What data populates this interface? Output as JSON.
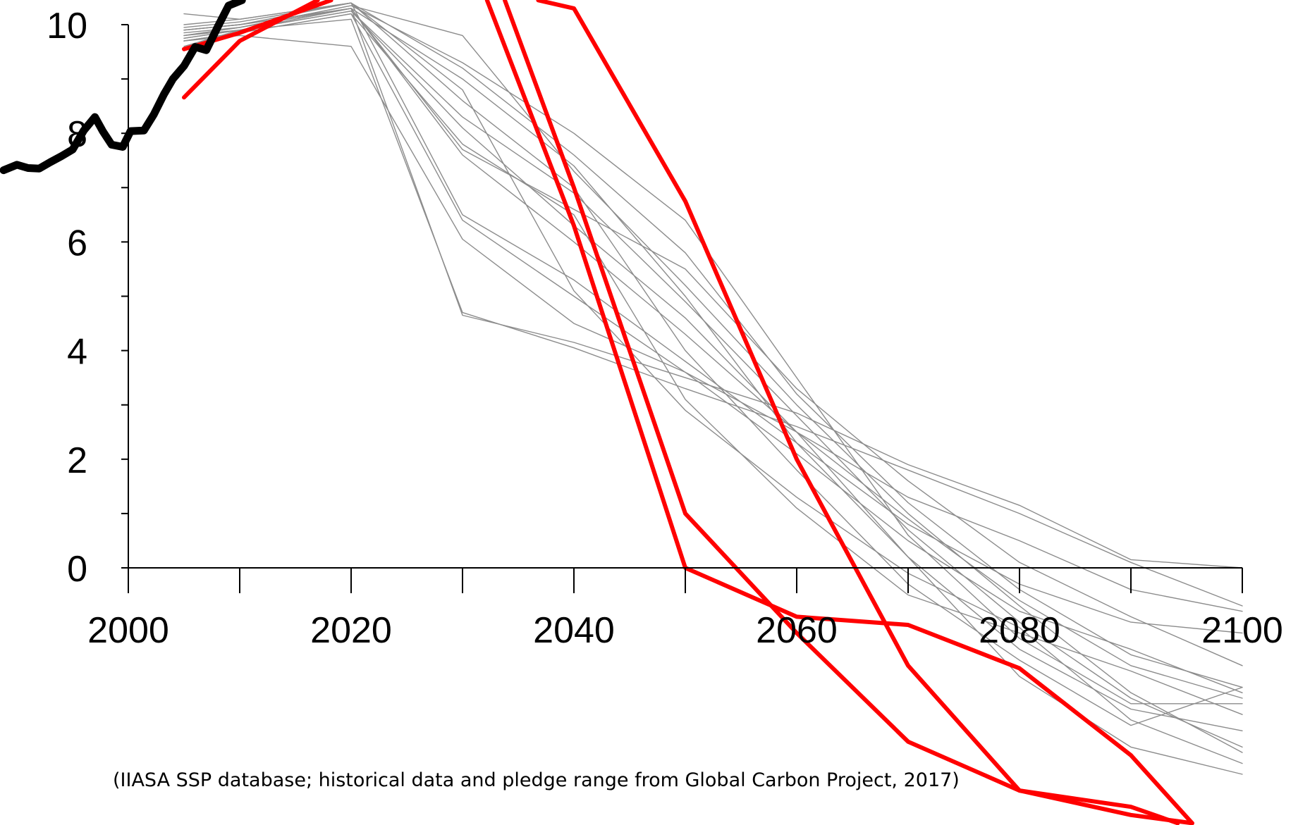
{
  "chart_data": {
    "type": "line",
    "title": "",
    "xlabel": "",
    "ylabel": "",
    "xlim": [
      1988.5,
      2105.8
    ],
    "ylim": [
      -4.7,
      10.45
    ],
    "x_ticks": [
      2000,
      2020,
      2040,
      2060,
      2080,
      2100
    ],
    "x_tick_labels": [
      "2000",
      "2020",
      "2040",
      "2060",
      "2080",
      "2100"
    ],
    "y_ticks": [
      0,
      2,
      4,
      6,
      8,
      10
    ],
    "y_tick_labels": [
      "0",
      "2",
      "4",
      "6",
      "8",
      "10"
    ],
    "grid": false,
    "legend": "none",
    "colors": {
      "historical": "#000000",
      "pathways_red": "#ff0000",
      "scenarios_grey": "#8c8c8c",
      "axis": "#000000"
    },
    "series": [
      {
        "group": "historical",
        "x": [
          1988.8,
          1990,
          1991,
          1992,
          1993,
          1994,
          1995,
          1996,
          1997,
          1997.7,
          1998.5,
          1999.5,
          2000.2,
          2001.4,
          2002.3,
          2003.2,
          2004,
          2005,
          2006,
          2007,
          2008,
          2009,
          2010.2
        ],
        "y": [
          7.32,
          7.42,
          7.36,
          7.35,
          7.47,
          7.58,
          7.7,
          8.05,
          8.3,
          8.04,
          7.79,
          7.75,
          8.04,
          8.05,
          8.35,
          8.72,
          9.0,
          9.24,
          9.59,
          9.53,
          9.95,
          10.35,
          10.45
        ]
      },
      {
        "group": "pathways_red",
        "x": [
          2005,
          2010,
          2018.2
        ],
        "y": [
          9.55,
          9.85,
          10.45
        ]
      },
      {
        "group": "pathways_red",
        "x": [
          2005,
          2010,
          2017
        ],
        "y": [
          8.66,
          9.7,
          10.45
        ]
      },
      {
        "group": "pathways_red",
        "x": [
          2033.8,
          2040,
          2050,
          2060,
          2070,
          2080,
          2090,
          2095.5
        ],
        "y": [
          10.45,
          7.0,
          1.0,
          -1.2,
          -3.2,
          -4.1,
          -4.55,
          -4.7
        ]
      },
      {
        "group": "pathways_red",
        "x": [
          2032.2,
          2040,
          2050,
          2060,
          2070,
          2080,
          2090,
          2095.5
        ],
        "y": [
          10.45,
          6.3,
          0.0,
          -0.9,
          -1.05,
          -1.85,
          -3.45,
          -4.7
        ]
      },
      {
        "group": "pathways_red",
        "x": [
          2036.8,
          2040,
          2050,
          2060,
          2070,
          2080,
          2090,
          2094.2
        ],
        "y": [
          10.45,
          10.3,
          6.75,
          2.0,
          -1.8,
          -4.1,
          -4.4,
          -4.7
        ]
      },
      {
        "group": "scenarios_grey",
        "x": [
          2005,
          2010,
          2020,
          2030,
          2040,
          2050,
          2060,
          2070,
          2080,
          2090,
          2100
        ],
        "y": [
          9.8,
          9.95,
          10.3,
          4.65,
          4.15,
          3.5,
          2.85,
          1.9,
          1.15,
          0.15,
          0.0
        ]
      },
      {
        "group": "scenarios_grey",
        "x": [
          2005,
          2010,
          2020,
          2030,
          2040,
          2050,
          2060,
          2070,
          2080,
          2090,
          2100
        ],
        "y": [
          9.6,
          9.9,
          10.1,
          4.7,
          4.05,
          3.3,
          2.6,
          1.8,
          1.0,
          0.1,
          -0.7
        ]
      },
      {
        "group": "scenarios_grey",
        "x": [
          2005,
          2010,
          2020,
          2030,
          2040,
          2050,
          2060,
          2070,
          2080,
          2090,
          2100
        ],
        "y": [
          9.7,
          9.8,
          9.6,
          6.05,
          4.5,
          3.6,
          2.5,
          1.3,
          0.5,
          -0.4,
          -0.8
        ]
      },
      {
        "group": "scenarios_grey",
        "x": [
          2005,
          2010,
          2020,
          2030,
          2040,
          2050,
          2060,
          2070,
          2080,
          2090,
          2100
        ],
        "y": [
          10.2,
          10.1,
          10.4,
          6.5,
          5.3,
          3.8,
          2.3,
          0.8,
          -0.3,
          -1.0,
          -1.2
        ]
      },
      {
        "group": "scenarios_grey",
        "x": [
          2005,
          2010,
          2020,
          2030,
          2040,
          2050,
          2060,
          2070,
          2080,
          2090,
          2100
        ],
        "y": [
          9.9,
          10.0,
          10.3,
          7.6,
          6.0,
          4.3,
          2.5,
          0.9,
          -0.6,
          -1.8,
          -2.4
        ]
      },
      {
        "group": "scenarios_grey",
        "x": [
          2005,
          2010,
          2020,
          2030,
          2040,
          2050,
          2060,
          2070,
          2080,
          2090,
          2100
        ],
        "y": [
          9.75,
          9.9,
          10.25,
          8.3,
          6.9,
          4.9,
          2.8,
          0.7,
          -1.0,
          -2.4,
          -3.3
        ]
      },
      {
        "group": "scenarios_grey",
        "x": [
          2005,
          2010,
          2020,
          2030,
          2040,
          2050,
          2060,
          2070,
          2080,
          2090,
          2100
        ],
        "y": [
          10.0,
          10.1,
          10.4,
          9.2,
          7.6,
          5.8,
          3.2,
          1.2,
          -0.4,
          -1.6,
          -2.2
        ]
      },
      {
        "group": "scenarios_grey",
        "x": [
          2005,
          2010,
          2020,
          2030,
          2040,
          2050,
          2060,
          2070,
          2080,
          2090,
          2100
        ],
        "y": [
          9.8,
          9.95,
          10.35,
          9.8,
          7.3,
          5.2,
          3.0,
          1.0,
          -0.7,
          -2.3,
          -3.4
        ]
      },
      {
        "group": "scenarios_grey",
        "x": [
          2005,
          2010,
          2020,
          2030,
          2040,
          2050,
          2060,
          2070,
          2080,
          2090,
          2100
        ],
        "y": [
          9.7,
          9.85,
          10.2,
          7.8,
          6.5,
          3.1,
          1.1,
          -0.5,
          -1.2,
          -1.9,
          -2.7
        ]
      },
      {
        "group": "scenarios_grey",
        "x": [
          2005,
          2010,
          2020,
          2030,
          2040,
          2050,
          2060,
          2070,
          2080,
          2090,
          2100
        ],
        "y": [
          9.9,
          10.0,
          10.3,
          9.0,
          7.4,
          5.0,
          2.3,
          0.2,
          -1.5,
          -2.6,
          -3.0
        ]
      },
      {
        "group": "scenarios_grey",
        "x": [
          2005,
          2010,
          2020,
          2030,
          2040,
          2050,
          2060,
          2070,
          2080,
          2090,
          2100
        ],
        "y": [
          9.85,
          9.95,
          10.35,
          9.3,
          8.0,
          6.4,
          3.5,
          0.6,
          -1.3,
          -2.5,
          -2.5
        ]
      },
      {
        "group": "scenarios_grey",
        "x": [
          2005,
          2010,
          2020,
          2030,
          2040,
          2050,
          2060,
          2070,
          2080,
          2090,
          2100
        ],
        "y": [
          9.75,
          9.9,
          10.25,
          8.1,
          6.3,
          4.6,
          2.5,
          0.2,
          -2.0,
          -3.3,
          -3.8
        ]
      },
      {
        "group": "scenarios_grey",
        "x": [
          2005,
          2010,
          2020,
          2030,
          2040,
          2050,
          2060,
          2070,
          2080,
          2090,
          2100
        ],
        "y": [
          9.95,
          10.05,
          10.4,
          8.8,
          5.1,
          2.9,
          1.3,
          -0.1,
          -1.1,
          -2.8,
          -3.6
        ]
      },
      {
        "group": "scenarios_grey",
        "x": [
          2005,
          2010,
          2020,
          2030,
          2040,
          2050,
          2060,
          2070,
          2080,
          2090,
          2100
        ],
        "y": [
          9.8,
          9.9,
          10.3,
          7.7,
          6.6,
          5.5,
          3.3,
          1.6,
          0.1,
          -0.9,
          -1.8
        ]
      },
      {
        "group": "scenarios_grey",
        "x": [
          2005,
          2010,
          2020,
          2030,
          2040,
          2050,
          2060,
          2070,
          2080,
          2090,
          2100
        ],
        "y": [
          9.7,
          9.85,
          10.2,
          6.4,
          5.0,
          3.6,
          2.1,
          0.5,
          -0.8,
          -1.5,
          -2.3
        ]
      },
      {
        "group": "scenarios_grey",
        "x": [
          2005,
          2010,
          2020,
          2030,
          2040,
          2050,
          2060,
          2070,
          2080,
          2090,
          2100
        ],
        "y": [
          9.9,
          10.0,
          10.4,
          8.6,
          7.0,
          4.0,
          1.8,
          -0.3,
          -1.7,
          -2.9,
          -2.2
        ]
      }
    ]
  },
  "source_note": "(IIASA SSP database; historical data and pledge range from Global Carbon Project, 2017)"
}
